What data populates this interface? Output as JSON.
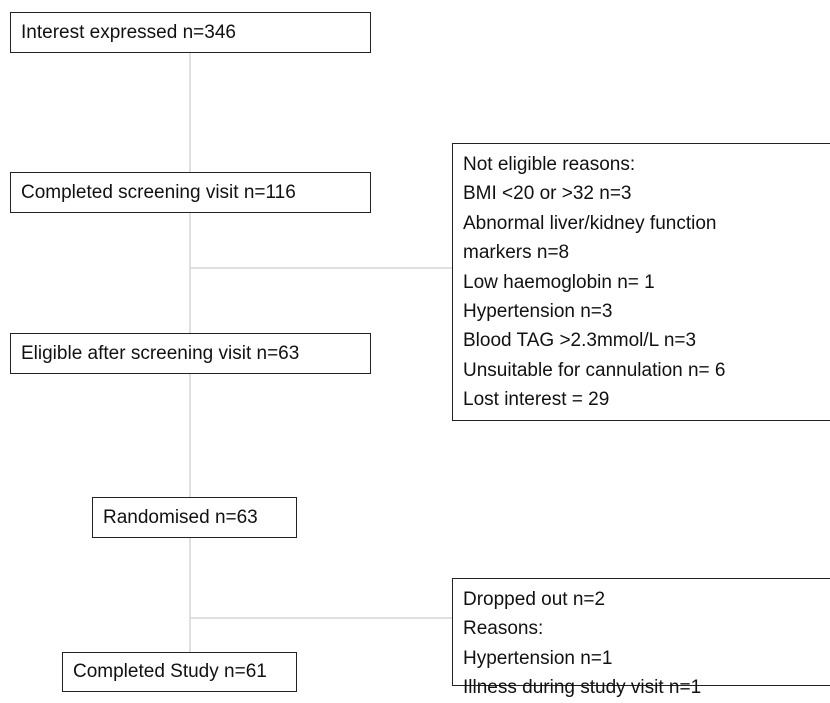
{
  "nodes": [
    {
      "label": "Interest expressed n=346"
    },
    {
      "label": "Completed screening visit n=116"
    },
    {
      "label": "Eligible after screening visit n=63"
    },
    {
      "label": "Randomised n=63"
    },
    {
      "label": "Completed Study n=61"
    }
  ],
  "side_boxes": [
    {
      "lines": [
        "Not eligible reasons:",
        "BMI <20 or >32 n=3",
        "Abnormal liver/kidney function",
        "markers n=8",
        "Low haemoglobin n= 1",
        "Hypertension n=3",
        "Blood TAG >2.3mmol/L n=3",
        "Unsuitable for cannulation n= 6",
        "Lost interest = 29"
      ]
    },
    {
      "lines": [
        "Dropped out n=2",
        "Reasons:",
        "Hypertension n=1",
        "Illness during study visit n=1"
      ]
    }
  ]
}
